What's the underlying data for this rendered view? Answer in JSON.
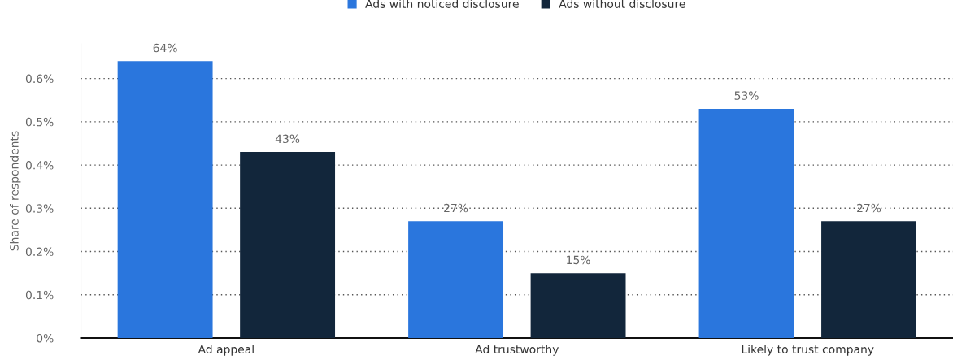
{
  "chart_data": {
    "type": "bar",
    "ylabel": "Share of respondents",
    "categories": [
      "Ad appeal",
      "Ad trustworthy",
      "Likely to trust company"
    ],
    "series": [
      {
        "name": "Ads with noticed disclosure",
        "color": "#2a76dd",
        "values": [
          0.64,
          0.27,
          0.53
        ],
        "value_labels": [
          "64%",
          "27%",
          "53%"
        ]
      },
      {
        "name": "Ads without disclosure",
        "color": "#12263b",
        "values": [
          0.43,
          0.15,
          0.27
        ],
        "value_labels": [
          "43%",
          "15%",
          "27%"
        ]
      }
    ],
    "yticks": [
      {
        "value": 0,
        "label": "0%"
      },
      {
        "value": 0.1,
        "label": "0.1%"
      },
      {
        "value": 0.2,
        "label": "0.2%"
      },
      {
        "value": 0.3,
        "label": "0.3%"
      },
      {
        "value": 0.4,
        "label": "0.4%"
      },
      {
        "value": 0.5,
        "label": "0.5%"
      },
      {
        "value": 0.6,
        "label": "0.6%"
      }
    ],
    "ylim": [
      0,
      0.68
    ],
    "grid": "y",
    "legend": "top"
  }
}
